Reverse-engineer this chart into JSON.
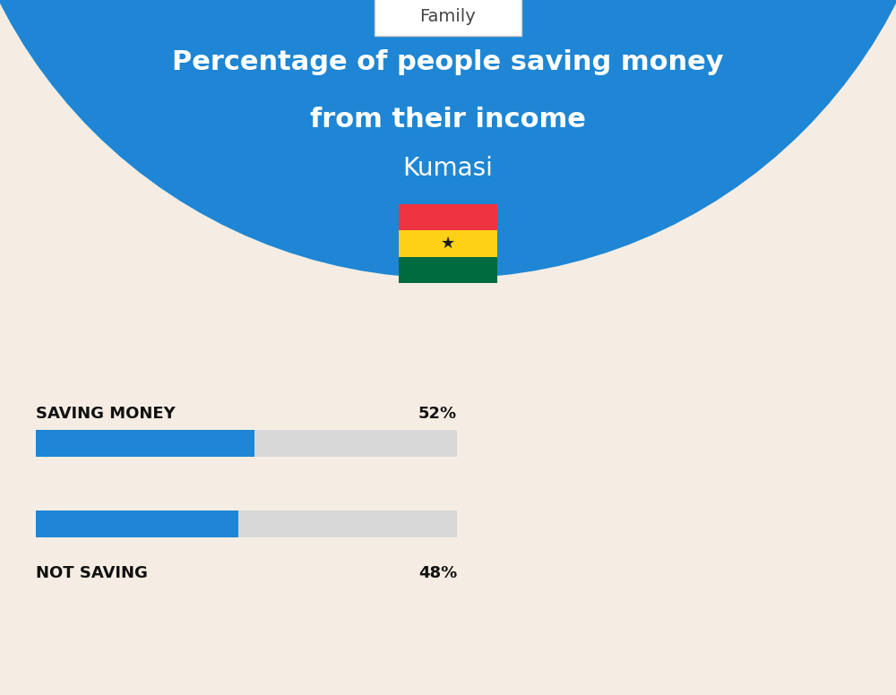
{
  "title_line1": "Percentage of people saving money",
  "title_line2": "from their income",
  "subtitle": "Kumasi",
  "category_label": "Family",
  "bar1_label": "SAVING MONEY",
  "bar1_value": 52,
  "bar1_pct": "52%",
  "bar2_label": "NOT SAVING",
  "bar2_value": 48,
  "bar2_pct": "48%",
  "bg_color": "#f5ede3",
  "header_bg_color": "#1e86d4",
  "bar_fill_color": "#1e86d4",
  "bar_bg_color": "#d8d8d8",
  "title_color": "#ffffff",
  "subtitle_color": "#ffffff",
  "label_color": "#111111",
  "category_text_color": "#444444",
  "fig_width": 10.0,
  "fig_height": 7.76,
  "dpi": 100
}
